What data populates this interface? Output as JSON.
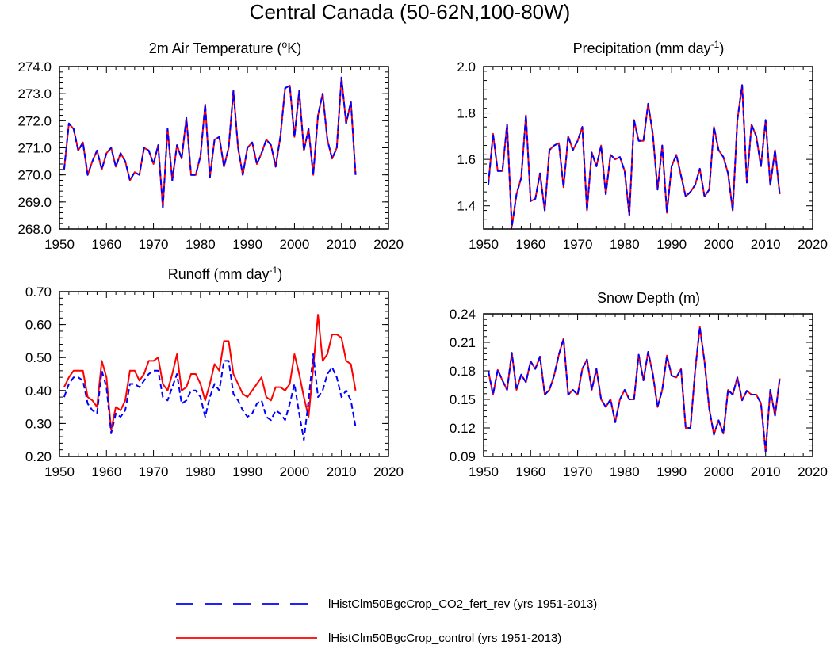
{
  "figure": {
    "title": "Central Canada (50-62N,100-80W)"
  },
  "legend": {
    "items": [
      {
        "label": "lHistClm50BgcCrop_CO2_fert_rev (yrs 1951-2013)",
        "color": "#0000ff",
        "dash": "dashed"
      },
      {
        "label": "lHistClm50BgcCrop_control (yrs 1951-2013)",
        "color": "#ff0000",
        "dash": "solid"
      }
    ]
  },
  "colors": {
    "series_a": "#0000ff",
    "series_b": "#ff0000",
    "axes": "#000000"
  },
  "chart_data": [
    {
      "type": "line",
      "title_main": "2m Air Temperature (",
      "title_sup": "o",
      "title_tail": "K)",
      "xlim": [
        1950,
        2020
      ],
      "ylim": [
        268.0,
        274.0
      ],
      "xticks": [
        1950,
        1960,
        1970,
        1980,
        1990,
        2000,
        2010,
        2020
      ],
      "xtick_labels": [
        "1950",
        "1960",
        "1970",
        "1980",
        "1990",
        "2000",
        "2010",
        "2020"
      ],
      "yticks": [
        268.0,
        269.0,
        270.0,
        271.0,
        272.0,
        273.0,
        274.0
      ],
      "ytick_labels": [
        "268.0",
        "269.0",
        "270.0",
        "271.0",
        "272.0",
        "273.0",
        "274.0"
      ],
      "x_start": 1951,
      "series": [
        {
          "values": [
            270.2,
            271.9,
            271.7,
            270.9,
            271.2,
            270.0,
            270.5,
            270.9,
            270.2,
            270.8,
            271.0,
            270.3,
            270.8,
            270.5,
            269.8,
            270.1,
            270.0,
            271.0,
            270.9,
            270.4,
            271.1,
            268.8,
            271.7,
            269.8,
            271.1,
            270.6,
            272.1,
            270.0,
            270.0,
            270.7,
            272.6,
            269.9,
            271.3,
            271.4,
            270.3,
            271.0,
            273.1,
            271.0,
            270.0,
            271.0,
            271.2,
            270.4,
            270.8,
            271.3,
            271.1,
            270.3,
            271.4,
            273.2,
            273.3,
            271.4,
            273.1,
            270.9,
            271.7,
            270.0,
            272.2,
            273.0,
            271.3,
            270.6,
            271.0,
            273.6,
            271.9,
            272.7,
            270.0
          ]
        },
        {
          "values": [
            270.2,
            271.9,
            271.7,
            270.9,
            271.2,
            270.0,
            270.5,
            270.9,
            270.2,
            270.8,
            271.0,
            270.3,
            270.8,
            270.5,
            269.8,
            270.1,
            270.0,
            271.0,
            270.9,
            270.4,
            271.1,
            268.8,
            271.7,
            269.8,
            271.1,
            270.6,
            272.1,
            270.0,
            270.0,
            270.7,
            272.6,
            269.9,
            271.3,
            271.4,
            270.3,
            271.0,
            273.1,
            271.0,
            270.0,
            271.0,
            271.2,
            270.4,
            270.8,
            271.3,
            271.1,
            270.3,
            271.4,
            273.2,
            273.3,
            271.4,
            273.1,
            270.9,
            271.7,
            270.0,
            272.2,
            273.0,
            271.3,
            270.6,
            271.0,
            273.6,
            271.9,
            272.7,
            270.0
          ]
        }
      ]
    },
    {
      "type": "line",
      "title_main": "Precipitation (mm day",
      "title_sup": "-1",
      "title_tail": ")",
      "xlim": [
        1950,
        2020
      ],
      "ylim": [
        1.3,
        2.0
      ],
      "xticks": [
        1950,
        1960,
        1970,
        1980,
        1990,
        2000,
        2010,
        2020
      ],
      "xtick_labels": [
        "1950",
        "1960",
        "1970",
        "1980",
        "1990",
        "2000",
        "2010",
        "2020"
      ],
      "yticks": [
        1.4,
        1.6,
        1.8,
        2.0
      ],
      "ytick_labels": [
        "1.4",
        "1.6",
        "1.8",
        "2.0"
      ],
      "x_start": 1951,
      "series": [
        {
          "values": [
            1.49,
            1.71,
            1.55,
            1.55,
            1.75,
            1.31,
            1.45,
            1.52,
            1.79,
            1.42,
            1.43,
            1.54,
            1.38,
            1.64,
            1.66,
            1.67,
            1.48,
            1.7,
            1.64,
            1.68,
            1.74,
            1.38,
            1.63,
            1.57,
            1.66,
            1.45,
            1.62,
            1.6,
            1.61,
            1.55,
            1.36,
            1.77,
            1.68,
            1.68,
            1.84,
            1.71,
            1.47,
            1.66,
            1.37,
            1.57,
            1.62,
            1.53,
            1.44,
            1.46,
            1.49,
            1.56,
            1.44,
            1.47,
            1.74,
            1.64,
            1.61,
            1.54,
            1.38,
            1.77,
            1.92,
            1.5,
            1.75,
            1.7,
            1.57,
            1.77,
            1.49,
            1.64,
            1.45
          ]
        },
        {
          "values": [
            1.49,
            1.71,
            1.55,
            1.55,
            1.75,
            1.31,
            1.45,
            1.52,
            1.79,
            1.42,
            1.43,
            1.54,
            1.38,
            1.64,
            1.66,
            1.67,
            1.48,
            1.7,
            1.64,
            1.68,
            1.74,
            1.38,
            1.63,
            1.57,
            1.66,
            1.45,
            1.62,
            1.6,
            1.61,
            1.55,
            1.36,
            1.77,
            1.68,
            1.68,
            1.84,
            1.71,
            1.47,
            1.66,
            1.37,
            1.57,
            1.62,
            1.53,
            1.44,
            1.46,
            1.49,
            1.56,
            1.44,
            1.47,
            1.74,
            1.64,
            1.61,
            1.54,
            1.38,
            1.77,
            1.92,
            1.5,
            1.75,
            1.7,
            1.57,
            1.77,
            1.49,
            1.64,
            1.45
          ]
        }
      ]
    },
    {
      "type": "line",
      "title_main": "Runoff (mm day",
      "title_sup": "-1",
      "title_tail": ")",
      "xlim": [
        1950,
        2020
      ],
      "ylim": [
        0.2,
        0.7
      ],
      "xticks": [
        1950,
        1960,
        1970,
        1980,
        1990,
        2000,
        2010,
        2020
      ],
      "xtick_labels": [
        "1950",
        "1960",
        "1970",
        "1980",
        "1990",
        "2000",
        "2010",
        "2020"
      ],
      "yticks": [
        0.2,
        0.3,
        0.4,
        0.5,
        0.6,
        0.7
      ],
      "ytick_labels": [
        "0.20",
        "0.30",
        "0.40",
        "0.50",
        "0.60",
        "0.70"
      ],
      "x_start": 1951,
      "series": [
        {
          "values": [
            0.38,
            0.42,
            0.44,
            0.44,
            0.43,
            0.36,
            0.34,
            0.33,
            0.46,
            0.41,
            0.27,
            0.33,
            0.32,
            0.34,
            0.42,
            0.42,
            0.41,
            0.43,
            0.45,
            0.46,
            0.46,
            0.38,
            0.37,
            0.41,
            0.45,
            0.36,
            0.37,
            0.4,
            0.4,
            0.38,
            0.32,
            0.38,
            0.42,
            0.4,
            0.49,
            0.49,
            0.39,
            0.37,
            0.34,
            0.32,
            0.33,
            0.36,
            0.37,
            0.32,
            0.31,
            0.34,
            0.33,
            0.31,
            0.36,
            0.42,
            0.33,
            0.25,
            0.37,
            0.51,
            0.38,
            0.4,
            0.45,
            0.47,
            0.44,
            0.38,
            0.4,
            0.37,
            0.29
          ]
        },
        {
          "values": [
            0.41,
            0.44,
            0.46,
            0.46,
            0.46,
            0.38,
            0.37,
            0.35,
            0.49,
            0.44,
            0.28,
            0.35,
            0.34,
            0.37,
            0.46,
            0.46,
            0.43,
            0.45,
            0.49,
            0.49,
            0.5,
            0.42,
            0.4,
            0.45,
            0.51,
            0.4,
            0.41,
            0.45,
            0.45,
            0.42,
            0.37,
            0.42,
            0.48,
            0.46,
            0.55,
            0.55,
            0.45,
            0.42,
            0.39,
            0.38,
            0.4,
            0.42,
            0.44,
            0.38,
            0.37,
            0.41,
            0.41,
            0.4,
            0.42,
            0.51,
            0.45,
            0.38,
            0.32,
            0.47,
            0.63,
            0.49,
            0.51,
            0.57,
            0.57,
            0.56,
            0.49,
            0.48,
            0.4
          ]
        }
      ]
    },
    {
      "type": "line",
      "title_main": "Snow Depth (m)",
      "title_sup": "",
      "title_tail": "",
      "xlim": [
        1950,
        2020
      ],
      "ylim": [
        0.09,
        0.24
      ],
      "xticks": [
        1950,
        1960,
        1970,
        1980,
        1990,
        2000,
        2010,
        2020
      ],
      "xtick_labels": [
        "1950",
        "1960",
        "1970",
        "1980",
        "1990",
        "2000",
        "2010",
        "2020"
      ],
      "yticks": [
        0.09,
        0.12,
        0.15,
        0.18,
        0.21,
        0.24
      ],
      "ytick_labels": [
        "0.09",
        "0.12",
        "0.15",
        "0.18",
        "0.21",
        "0.24"
      ],
      "x_start": 1951,
      "series": [
        {
          "values": [
            0.18,
            0.155,
            0.181,
            0.17,
            0.16,
            0.199,
            0.16,
            0.176,
            0.168,
            0.19,
            0.182,
            0.195,
            0.155,
            0.16,
            0.175,
            0.197,
            0.214,
            0.155,
            0.16,
            0.155,
            0.182,
            0.192,
            0.16,
            0.182,
            0.15,
            0.142,
            0.15,
            0.126,
            0.15,
            0.16,
            0.15,
            0.15,
            0.197,
            0.17,
            0.2,
            0.177,
            0.142,
            0.16,
            0.196,
            0.175,
            0.173,
            0.182,
            0.12,
            0.12,
            0.18,
            0.226,
            0.19,
            0.14,
            0.113,
            0.128,
            0.114,
            0.16,
            0.155,
            0.173,
            0.149,
            0.159,
            0.155,
            0.155,
            0.146,
            0.095,
            0.16,
            0.133,
            0.172
          ]
        },
        {
          "values": [
            0.18,
            0.155,
            0.181,
            0.17,
            0.16,
            0.199,
            0.16,
            0.176,
            0.168,
            0.19,
            0.182,
            0.195,
            0.155,
            0.16,
            0.175,
            0.197,
            0.214,
            0.155,
            0.16,
            0.155,
            0.182,
            0.192,
            0.16,
            0.182,
            0.15,
            0.142,
            0.15,
            0.126,
            0.15,
            0.16,
            0.15,
            0.15,
            0.197,
            0.17,
            0.2,
            0.177,
            0.142,
            0.16,
            0.196,
            0.175,
            0.173,
            0.182,
            0.12,
            0.12,
            0.18,
            0.226,
            0.19,
            0.14,
            0.113,
            0.128,
            0.114,
            0.16,
            0.155,
            0.173,
            0.149,
            0.159,
            0.155,
            0.155,
            0.146,
            0.095,
            0.16,
            0.133,
            0.172
          ]
        }
      ]
    }
  ]
}
